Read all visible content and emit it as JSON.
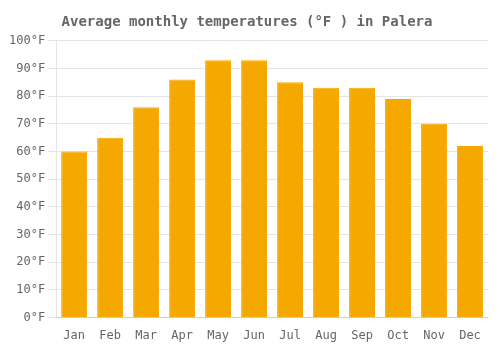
{
  "chart_data": {
    "type": "bar",
    "title": "Average monthly temperatures (°F ) in Palera",
    "categories": [
      "Jan",
      "Feb",
      "Mar",
      "Apr",
      "May",
      "Jun",
      "Jul",
      "Aug",
      "Sep",
      "Oct",
      "Nov",
      "Dec"
    ],
    "values": [
      60,
      65,
      76,
      86,
      93,
      93,
      85,
      83,
      83,
      79,
      70,
      62
    ],
    "color": "#F5A800",
    "ylim": [
      0,
      100
    ],
    "yticks": [
      {
        "value": 0,
        "label": "0°F"
      },
      {
        "value": 10,
        "label": "10°F"
      },
      {
        "value": 20,
        "label": "20°F"
      },
      {
        "value": 30,
        "label": "30°F"
      },
      {
        "value": 40,
        "label": "40°F"
      },
      {
        "value": 50,
        "label": "50°F"
      },
      {
        "value": 60,
        "label": "60°F"
      },
      {
        "value": 70,
        "label": "70°F"
      },
      {
        "value": 80,
        "label": "80°F"
      },
      {
        "value": 90,
        "label": "90°F"
      },
      {
        "value": 100,
        "label": "100°F"
      }
    ],
    "grid": true
  }
}
